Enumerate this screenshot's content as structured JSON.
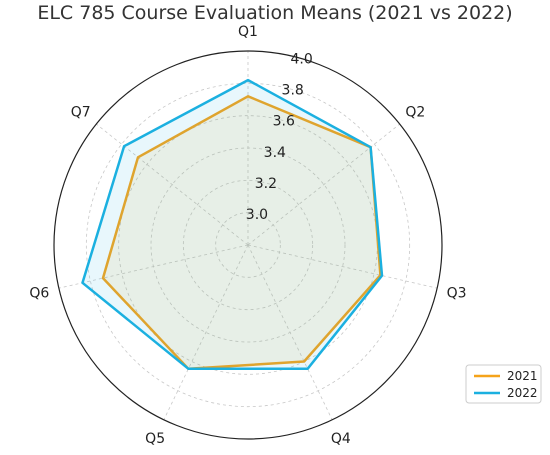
{
  "chart_data": {
    "type": "radar",
    "title": "ELC 785 Course Evaluation Means (2021 vs 2022)",
    "categories": [
      "Q1",
      "Q2",
      "Q3",
      "Q4",
      "Q5",
      "Q6",
      "Q7"
    ],
    "rlim": [
      2.8,
      4.0
    ],
    "rticks": [
      "3.0",
      "3.2",
      "3.4",
      "3.6",
      "3.8",
      "4.0"
    ],
    "grid": true,
    "legend_position": "bottom-right",
    "series": [
      {
        "name": "2021",
        "color": "#f5a31a",
        "values": [
          3.72,
          3.77,
          3.64,
          3.6,
          3.65,
          3.72,
          3.67
        ]
      },
      {
        "name": "2022",
        "color": "#1bb0e0",
        "values": [
          3.82,
          3.77,
          3.65,
          3.65,
          3.65,
          3.85,
          3.78
        ]
      }
    ]
  }
}
